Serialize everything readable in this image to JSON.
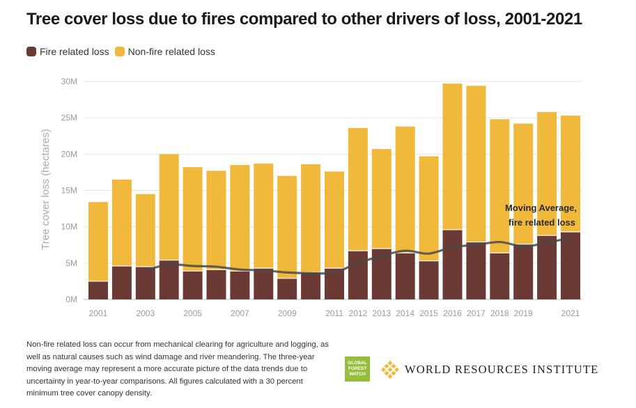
{
  "title": "Tree cover loss due to fires compared to other drivers of loss, 2001-2021",
  "legend": {
    "fire_label": "Fire related loss",
    "nonfire_label": "Non-fire related loss"
  },
  "colors": {
    "fire": "#6b3a35",
    "nonfire": "#f0b93b",
    "moving_average": "#4a4a4a",
    "gfw_green": "#97bd3d",
    "wri_gold": "#f0b93b"
  },
  "chart_data": {
    "type": "bar",
    "stacked": true,
    "ylabel": "Tree cover loss (hectares)",
    "ylim": [
      0,
      30000000
    ],
    "yticks": [
      0,
      5000000,
      10000000,
      15000000,
      20000000,
      25000000,
      30000000
    ],
    "ytick_labels": [
      "0M",
      "5M",
      "10M",
      "15M",
      "20M",
      "25M",
      "30M"
    ],
    "grid": true,
    "categories": [
      "2001",
      "2002",
      "2003",
      "2004",
      "2005",
      "2006",
      "2007",
      "2008",
      "2009",
      "2010",
      "2011",
      "2012",
      "2013",
      "2014",
      "2015",
      "2016",
      "2017",
      "2018",
      "2019",
      "2020",
      "2021"
    ],
    "xtick_labels": [
      "2001",
      "",
      "2003",
      "",
      "2005",
      "",
      "2007",
      "",
      "2009",
      "",
      "2011",
      "2012",
      "2013",
      "2014",
      "2015",
      "2016",
      "2017",
      "2018",
      "2019",
      "",
      "2021"
    ],
    "series": [
      {
        "name": "Fire related loss",
        "values": [
          2500000,
          4600000,
          4500000,
          5400000,
          3900000,
          4100000,
          3900000,
          4300000,
          2900000,
          3700000,
          4300000,
          6700000,
          7000000,
          6400000,
          5300000,
          9600000,
          7900000,
          6400000,
          7600000,
          8800000,
          9300000
        ]
      },
      {
        "name": "Non-fire related loss",
        "values": [
          10900000,
          11900000,
          10000000,
          14600000,
          14300000,
          13600000,
          14600000,
          14400000,
          14100000,
          14900000,
          13300000,
          16900000,
          13700000,
          17400000,
          14400000,
          20100000,
          21500000,
          18400000,
          16600000,
          17000000,
          16000000
        ]
      }
    ],
    "moving_average": {
      "name": "Moving Average, fire related loss",
      "x": [
        "2003",
        "2004",
        "2005",
        "2006",
        "2007",
        "2008",
        "2009",
        "2010",
        "2011",
        "2012",
        "2013",
        "2014",
        "2015",
        "2016",
        "2017",
        "2018",
        "2019",
        "2020",
        "2021"
      ],
      "values": [
        4000000,
        4800000,
        4600000,
        4500000,
        4100000,
        4000000,
        3700000,
        3600000,
        3700000,
        5000000,
        6000000,
        6700000,
        6300000,
        7200000,
        7500000,
        7900000,
        7300000,
        7800000,
        8500000
      ]
    },
    "annotation": [
      "Moving Average,",
      "fire related loss"
    ]
  },
  "footnote": "Non-fire related loss can occur from mechanical clearing for agriculture and logging, as well as natural causes such as wind damage and river meandering. The three-year moving average may represent a more accurate picture of the data trends due to uncertainty in year-to-year comparisons. All figures calculated with a 30 percent minimum tree cover canopy density.",
  "logos": {
    "gfw_lines": [
      "GLOBAL",
      "FOREST",
      "WATCH"
    ],
    "wri_text": "WORLD RESOURCES INSTITUTE"
  }
}
